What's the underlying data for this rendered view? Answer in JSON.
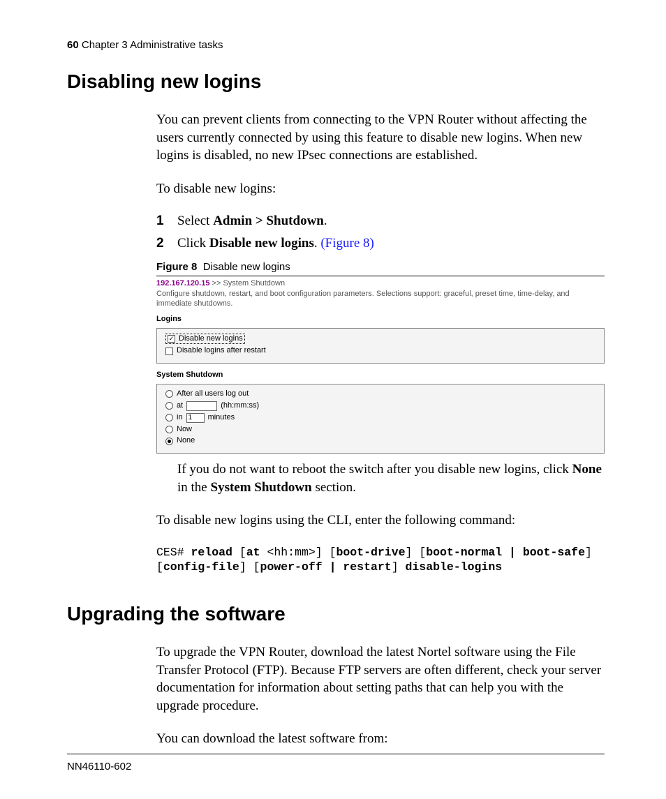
{
  "header": {
    "page_number": "60",
    "chapter": "Chapter 3  Administrative tasks"
  },
  "section1": {
    "title": "Disabling new logins",
    "para1": "You can prevent clients from connecting to the VPN Router without affecting the users currently connected by using this feature to disable new logins. When new logins is disabled, no new IPsec connections are established.",
    "para2": "To disable new logins:",
    "steps": [
      {
        "num": "1",
        "pre": "Select ",
        "bold": "Admin > Shutdown",
        "post": "."
      },
      {
        "num": "2",
        "pre": "Click ",
        "bold": "Disable new logins",
        "post": ". ",
        "link": "(Figure 8)"
      }
    ]
  },
  "figure": {
    "label": "Figure 8",
    "caption": "Disable new logins",
    "breadcrumb_ip": "192.167.120.15",
    "breadcrumb_sep": " >> ",
    "breadcrumb_rest": "System Shutdown",
    "description": "Configure shutdown, restart, and boot configuration parameters. Selections support: graceful, preset time, time-delay, and immediate shutdowns.",
    "logins": {
      "panel_title": "Logins",
      "items": [
        {
          "label": "Disable new logins",
          "checked": true,
          "focused": true
        },
        {
          "label": "Disable logins after restart",
          "checked": false,
          "focused": false
        }
      ]
    },
    "shutdown": {
      "panel_title": "System Shutdown",
      "items": [
        {
          "type": "radio",
          "label": "After all users log out",
          "selected": false
        },
        {
          "type": "radio-input",
          "prefix": "at",
          "value": "",
          "suffix": "(hh:mm:ss)",
          "selected": false
        },
        {
          "type": "radio-input",
          "prefix": "in",
          "value": "1",
          "suffix": "minutes",
          "selected": false
        },
        {
          "type": "radio",
          "label": "Now",
          "selected": false
        },
        {
          "type": "radio",
          "label": "None",
          "selected": true
        }
      ]
    }
  },
  "after_figure": {
    "pre": "If you do not want to reboot the switch after you disable new logins, click ",
    "bold1": "None",
    "mid": " in the ",
    "bold2": "System Shutdown",
    "post": " section."
  },
  "para_cli_intro": "To disable new logins using the CLI, enter the following command:",
  "cli": {
    "prefix": "CES# ",
    "tokens": [
      {
        "b": true,
        "t": "reload"
      },
      {
        "b": false,
        "t": " ["
      },
      {
        "b": true,
        "t": "at"
      },
      {
        "b": false,
        "t": " <hh:mm>] ["
      },
      {
        "b": true,
        "t": "boot-drive"
      },
      {
        "b": false,
        "t": "] ["
      },
      {
        "b": true,
        "t": "boot-normal | boot-safe"
      },
      {
        "b": false,
        "t": "] "
      },
      {
        "b": false,
        "t": "["
      },
      {
        "b": true,
        "t": "config-file"
      },
      {
        "b": false,
        "t": "] ["
      },
      {
        "b": true,
        "t": "power-off | restart"
      },
      {
        "b": false,
        "t": "] "
      },
      {
        "b": true,
        "t": "disable-logins"
      }
    ]
  },
  "section2": {
    "title": "Upgrading the software",
    "para1": "To upgrade the VPN Router, download the latest Nortel software using the File Transfer Protocol (FTP). Because FTP servers are often different, check your server documentation for information about setting paths that can help you with the upgrade procedure.",
    "para2": "You can download the latest software from:"
  },
  "footer": {
    "doc_id": "NN46110-602"
  },
  "colors": {
    "link": "#1a1aff",
    "ip": "#8b008b",
    "panel_bg": "#f4f4f4",
    "panel_border": "#888888"
  }
}
